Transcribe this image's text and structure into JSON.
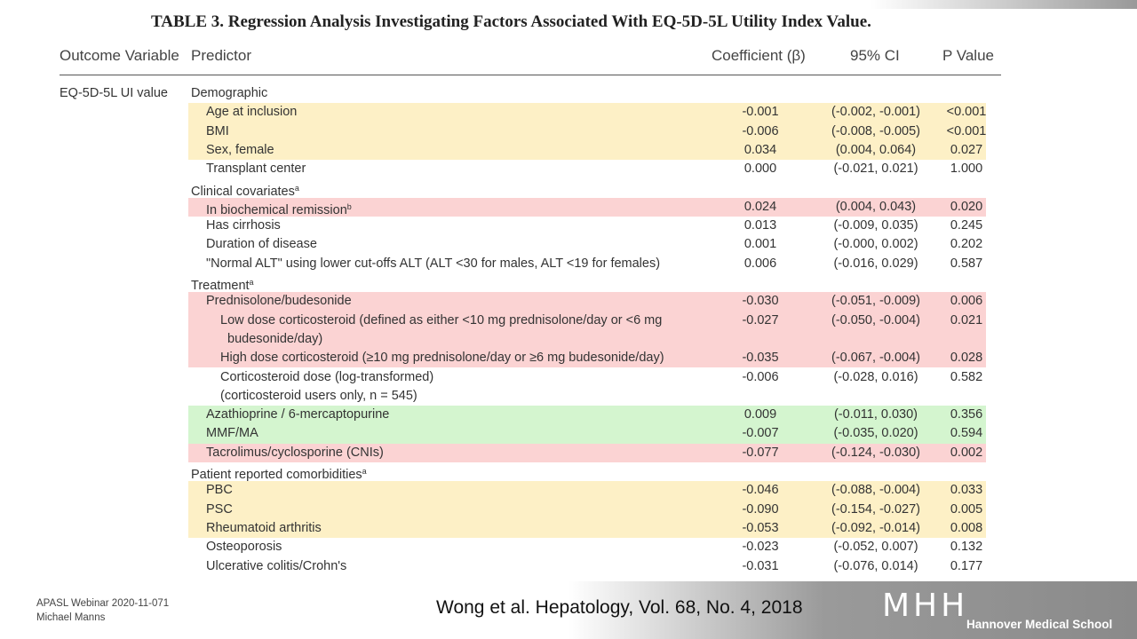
{
  "title": "TABLE 3. Regression Analysis Investigating Factors Associated With EQ-5D-5L Utility Index Value.",
  "header": [
    "Outcome Variable",
    "Predictor",
    "Coefficient (β)",
    "95% CI",
    "P Value"
  ],
  "outcome": "EQ-5D-5L UI value",
  "rows": [
    {
      "level": 0,
      "predictor": "Demographic"
    },
    {
      "level": 1,
      "predictor": "Age at inclusion",
      "coef": "-0.001",
      "ci": "(-0.002, -0.001)",
      "p": "<0.001",
      "highlight": "#fdf0c6"
    },
    {
      "level": 1,
      "predictor": "BMI",
      "coef": "-0.006",
      "ci": "(-0.008, -0.005)",
      "p": "<0.001",
      "highlight": "#fdf0c6"
    },
    {
      "level": 1,
      "predictor": "Sex, female",
      "coef": "0.034",
      "ci": "(0.004, 0.064)",
      "p": "0.027",
      "highlight": "#fdf0c6"
    },
    {
      "level": 1,
      "predictor": "Transplant center",
      "coef": "0.000",
      "ci": "(-0.021, 0.021)",
      "p": "1.000"
    },
    {
      "level": 0,
      "predictor": "Clinical covariates",
      "sup": "a"
    },
    {
      "level": 1,
      "predictor": "In biochemical remission",
      "sup": "b",
      "coef": "0.024",
      "ci": "(0.004, 0.043)",
      "p": "0.020",
      "highlight": "#fbd3d3"
    },
    {
      "level": 1,
      "predictor": "Has cirrhosis",
      "coef": "0.013",
      "ci": "(-0.009, 0.035)",
      "p": "0.245"
    },
    {
      "level": 1,
      "predictor": "Duration of disease",
      "coef": "0.001",
      "ci": "(-0.000, 0.002)",
      "p": "0.202"
    },
    {
      "level": 1,
      "predictor": "\"Normal ALT\" using lower cut-offs ALT (ALT <30 for males, ALT <19 for females)",
      "coef": "0.006",
      "ci": "(-0.016, 0.029)",
      "p": "0.587"
    },
    {
      "level": 0,
      "predictor": "Treatment",
      "sup": "a"
    },
    {
      "level": 1,
      "predictor": "Prednisolone/budesonide",
      "coef": "-0.030",
      "ci": "(-0.051, -0.009)",
      "p": "0.006",
      "highlight": "#fbd3d3"
    },
    {
      "level": 2,
      "predictor": [
        "Low dose corticosteroid (defined as either <10 mg prednisolone/day or <6 mg",
        "budesonide/day)"
      ],
      "coef": "-0.027",
      "ci": "(-0.050, -0.004)",
      "p": "0.021",
      "highlight": "#fbd3d3"
    },
    {
      "level": 2,
      "predictor": "High dose corticosteroid (≥10 mg prednisolone/day or ≥6 mg budesonide/day)",
      "coef": "-0.035",
      "ci": "(-0.067, -0.004)",
      "p": "0.028",
      "highlight": "#fbd3d3"
    },
    {
      "level": 2,
      "predictor": [
        "Corticosteroid dose (log-transformed)",
        "(corticosteroid users only, n = 545)"
      ],
      "coef": "-0.006",
      "ci": "(-0.028, 0.016)",
      "p": "0.582"
    },
    {
      "level": 1,
      "predictor": "Azathioprine / 6-mercaptopurine",
      "coef": "0.009",
      "ci": "(-0.011, 0.030)",
      "p": "0.356",
      "highlight": "#d4f5cf"
    },
    {
      "level": 1,
      "predictor": "MMF/MA",
      "coef": "-0.007",
      "ci": "(-0.035, 0.020)",
      "p": "0.594",
      "highlight": "#d4f5cf"
    },
    {
      "level": 1,
      "predictor": "Tacrolimus/cyclosporine (CNIs)",
      "coef": "-0.077",
      "ci": "(-0.124, -0.030)",
      "p": "0.002",
      "highlight": "#fbd3d3"
    },
    {
      "level": 0,
      "predictor": "Patient reported comorbidities",
      "sup": "a"
    },
    {
      "level": 1,
      "predictor": "PBC",
      "coef": "-0.046",
      "ci": "(-0.088, -0.004)",
      "p": "0.033",
      "highlight": "#fdf0c6"
    },
    {
      "level": 1,
      "predictor": "PSC",
      "coef": "-0.090",
      "ci": "(-0.154, -0.027)",
      "p": "0.005",
      "highlight": "#fdf0c6"
    },
    {
      "level": 1,
      "predictor": "Rheumatoid arthritis",
      "coef": "-0.053",
      "ci": "(-0.092, -0.014)",
      "p": "0.008",
      "highlight": "#fdf0c6"
    },
    {
      "level": 1,
      "predictor": "Osteoporosis",
      "coef": "-0.023",
      "ci": "(-0.052, 0.007)",
      "p": "0.132"
    },
    {
      "level": 1,
      "predictor": "Ulcerative colitis/Crohn's",
      "coef": "-0.031",
      "ci": "(-0.076, 0.014)",
      "p": "0.177"
    }
  ],
  "footer": {
    "webinar": "APASL Webinar 2020-11-071",
    "author": "Michael Manns",
    "citation": "Wong et al. Hepatology, Vol. 68, No. 4, 2018",
    "logo": "MHH",
    "school": "Hannover Medical School"
  }
}
